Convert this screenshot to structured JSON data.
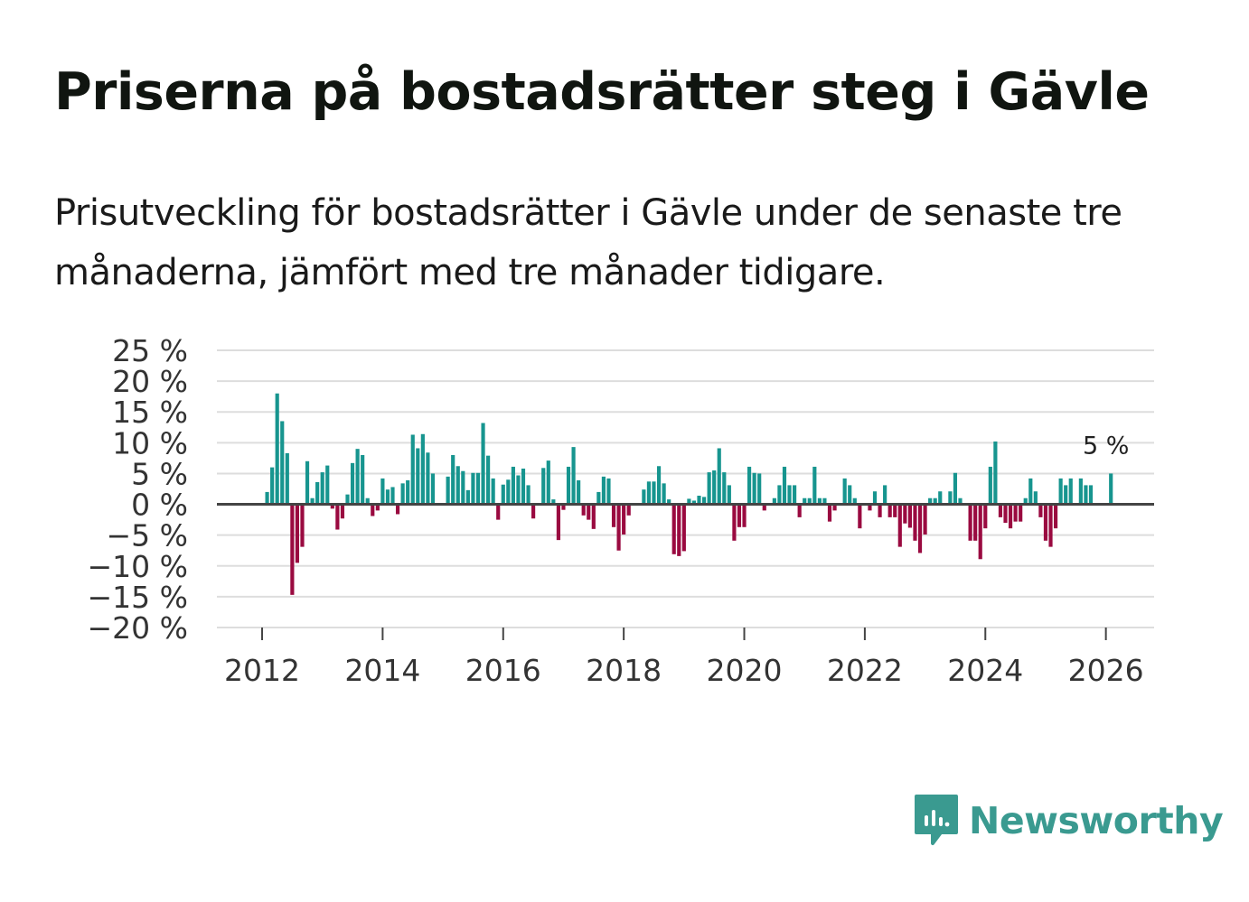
{
  "title": "Priserna på bostadsrätter steg i Gävle",
  "subtitle": "Prisutveckling för bostadsrätter i Gävle under de senaste tre månaderna, jämfört med tre månader tidigare.",
  "brand": {
    "name": "Newsworthy",
    "icon": "newsworthy-logo-icon",
    "color": "#3a9a90"
  },
  "colors": {
    "positive": "#17958f",
    "negative": "#9a0a40",
    "grid": "#dddddd",
    "zero_line": "#444444"
  },
  "chart_data": {
    "type": "bar",
    "title": "Priserna på bostadsrätter steg i Gävle",
    "xlabel": "",
    "ylabel": "",
    "unit": " %",
    "ylim": [
      -20,
      25
    ],
    "yticks": [
      25,
      20,
      15,
      10,
      5,
      0,
      -5,
      -10,
      -15,
      -20
    ],
    "ytick_labels": [
      "25 %",
      "20 %",
      "15 %",
      "10 %",
      "5 %",
      "0 %",
      "−5 %",
      "−10 %",
      "−15 %",
      "−20 %"
    ],
    "xlim": [
      2011.25,
      2026.8
    ],
    "xticks": [
      2012,
      2014,
      2016,
      2018,
      2020,
      2022,
      2024,
      2026
    ],
    "xtick_labels": [
      "2012",
      "2014",
      "2016",
      "2018",
      "2020",
      "2022",
      "2024",
      "2026"
    ],
    "start": "2012-01",
    "frequency": "monthly",
    "annotation": {
      "label": "5 %",
      "month": "2026-01",
      "value": 5
    },
    "values": [
      0,
      2,
      6,
      18,
      13.5,
      8.3,
      -14.7,
      -9.5,
      -6.9,
      7,
      1,
      3.6,
      5.2,
      6.3,
      -0.7,
      -4.1,
      -2.3,
      1.6,
      6.7,
      9,
      8,
      1,
      -1.9,
      -1,
      4.2,
      2.4,
      2.8,
      -1.6,
      3.4,
      3.9,
      11.3,
      9.1,
      11.4,
      8.4,
      5,
      0,
      0,
      4.5,
      8,
      6.2,
      5.4,
      2.3,
      5.1,
      5.1,
      13.2,
      7.9,
      4.2,
      -2.5,
      3.2,
      4,
      6.1,
      4.7,
      5.8,
      3.1,
      -2.3,
      0,
      5.9,
      7.1,
      0.8,
      -5.8,
      -0.9,
      6.1,
      9.3,
      3.9,
      -1.8,
      -2.5,
      -4,
      2,
      4.5,
      4.2,
      -3.7,
      -7.5,
      -4.9,
      -1.8,
      0,
      0,
      2.4,
      3.7,
      3.7,
      6.2,
      3.4,
      0.8,
      -8.1,
      -8.4,
      -7.6,
      0.9,
      0.6,
      1.4,
      1.2,
      5.2,
      5.5,
      9.1,
      5.2,
      3.1,
      -5.9,
      -3.7,
      -3.7,
      6.1,
      5.1,
      5,
      -1,
      0,
      1,
      3.1,
      6.1,
      3.1,
      3.1,
      -2.1,
      1,
      1,
      6.1,
      1,
      1,
      -2.8,
      -1,
      0,
      4.2,
      3.1,
      1,
      -3.9,
      0,
      -1,
      2.1,
      -2.1,
      3.1,
      -2.1,
      -2.1,
      -6.9,
      -3.1,
      -3.8,
      -5.9,
      -7.9,
      -4.9,
      1,
      1,
      2.1,
      0,
      2.1,
      5.1,
      1,
      0,
      -5.9,
      -5.9,
      -8.9,
      -3.9,
      6.1,
      10.2,
      -2.1,
      -3,
      -3.9,
      -2.8,
      -2.8,
      1,
      4.2,
      2.1,
      -2.1,
      -5.9,
      -6.9,
      -3.9,
      4.2,
      3.1,
      4.2,
      0,
      4.2,
      3.1,
      3.1,
      0,
      0,
      0,
      5
    ]
  }
}
